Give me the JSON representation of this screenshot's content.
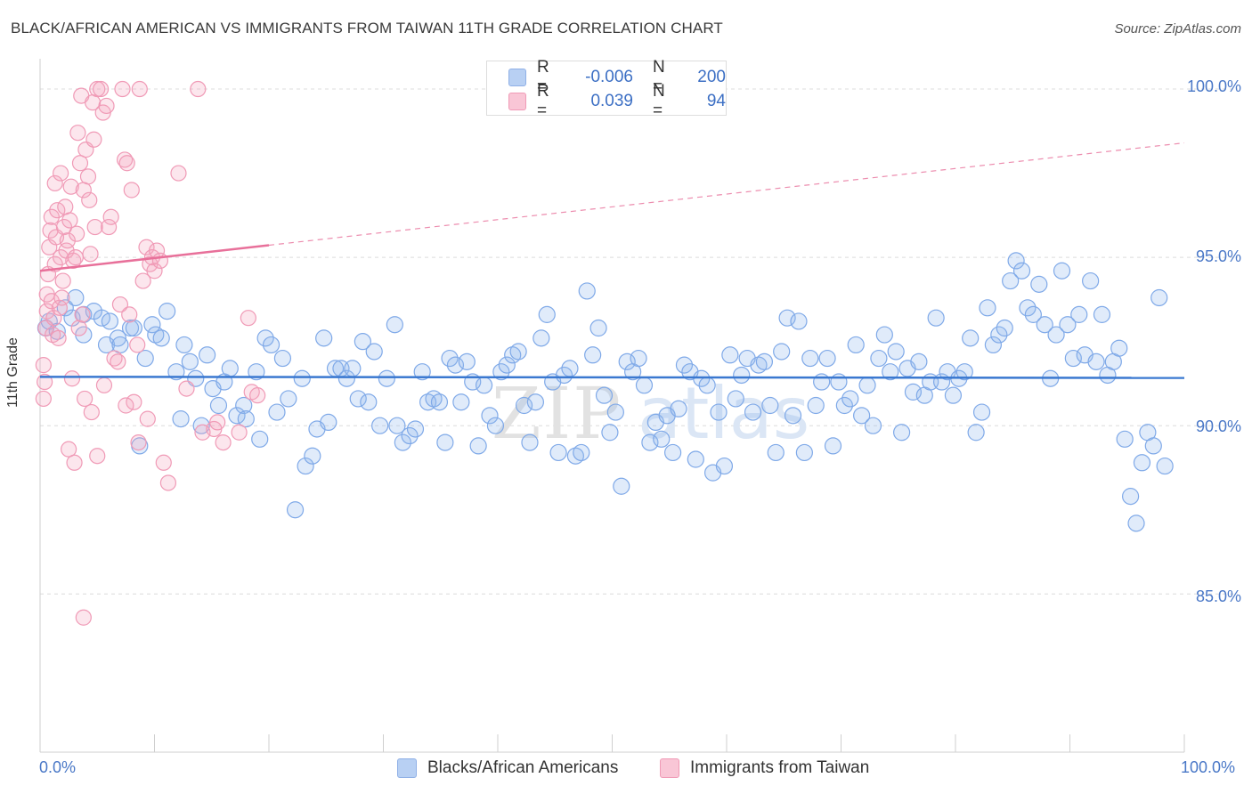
{
  "title": "BLACK/AFRICAN AMERICAN VS IMMIGRANTS FROM TAIWAN 11TH GRADE CORRELATION CHART",
  "source": "Source: ZipAtlas.com",
  "colors": {
    "blue": "#8fb6ee",
    "blue_line": "#3a78d0",
    "pink": "#f4a7c0",
    "pink_line": "#e8709a",
    "tick": "#4a78c7"
  },
  "legend_top": {
    "row1": {
      "r_label": "R =",
      "r_value": "-0.006",
      "n_label": "N =",
      "n_value": "200"
    },
    "row2": {
      "r_label": "R =",
      "r_value": "0.039",
      "n_label": "N =",
      "n_value": "94"
    }
  },
  "watermark": {
    "zip": "ZIP",
    "atlas": "atlas"
  },
  "chart_data": {
    "type": "scatter",
    "title": "BLACK/AFRICAN AMERICAN VS IMMIGRANTS FROM TAIWAN 11TH GRADE CORRELATION CHART",
    "xlabel": "",
    "ylabel": "11th Grade",
    "xlim": [
      0,
      100
    ],
    "ylim": [
      80.3,
      100.9
    ],
    "x_tick_labels": [
      "0.0%",
      "100.0%"
    ],
    "y_ticks": [
      85,
      90,
      95,
      100
    ],
    "y_tick_labels": [
      "85.0%",
      "90.0%",
      "95.0%",
      "100.0%"
    ],
    "grid": true,
    "legend_position": "bottom",
    "series": [
      {
        "name": "Blacks/African Americans",
        "trend": {
          "x": [
            0,
            100
          ],
          "y": [
            91.45,
            91.42
          ]
        },
        "points": [
          [
            0.5,
            92.9
          ],
          [
            0.8,
            93.1
          ],
          [
            1.5,
            92.8
          ],
          [
            2.2,
            93.5
          ],
          [
            2.8,
            93.2
          ],
          [
            3.1,
            93.8
          ],
          [
            3.8,
            93.3
          ],
          [
            3.8,
            92.7
          ],
          [
            4.7,
            93.4
          ],
          [
            5.4,
            93.2
          ],
          [
            5.8,
            92.4
          ],
          [
            6.1,
            93.1
          ],
          [
            6.8,
            92.6
          ],
          [
            7.0,
            92.4
          ],
          [
            7.9,
            92.9
          ],
          [
            8.2,
            92.9
          ],
          [
            8.7,
            89.4
          ],
          [
            9.2,
            92.0
          ],
          [
            9.8,
            93.0
          ],
          [
            10.1,
            92.7
          ],
          [
            10.6,
            92.6
          ],
          [
            11.1,
            93.4
          ],
          [
            11.9,
            91.6
          ],
          [
            12.3,
            90.2
          ],
          [
            12.6,
            92.4
          ],
          [
            13.1,
            91.9
          ],
          [
            13.6,
            91.4
          ],
          [
            14.1,
            90.0
          ],
          [
            14.6,
            92.1
          ],
          [
            15.1,
            91.1
          ],
          [
            15.6,
            90.6
          ],
          [
            16.1,
            91.3
          ],
          [
            16.6,
            91.7
          ],
          [
            17.2,
            90.3
          ],
          [
            17.8,
            90.6
          ],
          [
            18.0,
            90.2
          ],
          [
            18.9,
            91.6
          ],
          [
            19.2,
            89.6
          ],
          [
            19.7,
            92.6
          ],
          [
            20.2,
            92.4
          ],
          [
            20.7,
            90.4
          ],
          [
            21.2,
            92.0
          ],
          [
            21.7,
            90.8
          ],
          [
            22.3,
            87.5
          ],
          [
            22.9,
            91.4
          ],
          [
            23.2,
            88.8
          ],
          [
            23.8,
            89.1
          ],
          [
            24.2,
            89.9
          ],
          [
            24.8,
            92.6
          ],
          [
            25.2,
            90.1
          ],
          [
            25.8,
            91.7
          ],
          [
            26.3,
            91.7
          ],
          [
            26.8,
            91.4
          ],
          [
            27.3,
            91.7
          ],
          [
            27.8,
            90.8
          ],
          [
            28.2,
            92.5
          ],
          [
            28.7,
            90.7
          ],
          [
            29.2,
            92.2
          ],
          [
            29.7,
            90.0
          ],
          [
            30.3,
            91.4
          ],
          [
            31.0,
            93.0
          ],
          [
            31.2,
            90.0
          ],
          [
            31.7,
            89.5
          ],
          [
            32.3,
            89.7
          ],
          [
            32.8,
            89.9
          ],
          [
            33.4,
            91.6
          ],
          [
            33.9,
            90.7
          ],
          [
            34.4,
            90.8
          ],
          [
            34.9,
            90.7
          ],
          [
            35.4,
            89.5
          ],
          [
            35.8,
            92.0
          ],
          [
            36.3,
            91.8
          ],
          [
            36.8,
            90.7
          ],
          [
            37.3,
            91.9
          ],
          [
            37.8,
            91.3
          ],
          [
            38.3,
            89.4
          ],
          [
            38.8,
            91.2
          ],
          [
            39.3,
            90.3
          ],
          [
            39.8,
            90.0
          ],
          [
            40.3,
            91.6
          ],
          [
            40.8,
            91.8
          ],
          [
            41.3,
            92.1
          ],
          [
            41.8,
            92.2
          ],
          [
            42.3,
            90.6
          ],
          [
            42.8,
            89.5
          ],
          [
            43.3,
            90.7
          ],
          [
            43.8,
            92.6
          ],
          [
            44.3,
            93.3
          ],
          [
            44.8,
            91.3
          ],
          [
            45.3,
            89.2
          ],
          [
            45.8,
            91.5
          ],
          [
            46.3,
            91.7
          ],
          [
            46.8,
            89.1
          ],
          [
            47.3,
            89.2
          ],
          [
            47.8,
            94.0
          ],
          [
            48.3,
            92.1
          ],
          [
            48.8,
            92.9
          ],
          [
            49.3,
            90.9
          ],
          [
            49.8,
            89.8
          ],
          [
            50.3,
            90.4
          ],
          [
            50.8,
            88.2
          ],
          [
            51.3,
            91.9
          ],
          [
            51.8,
            91.6
          ],
          [
            52.3,
            92.0
          ],
          [
            52.8,
            91.2
          ],
          [
            53.3,
            89.5
          ],
          [
            53.8,
            90.1
          ],
          [
            54.3,
            89.6
          ],
          [
            54.8,
            90.3
          ],
          [
            55.3,
            89.2
          ],
          [
            55.8,
            90.5
          ],
          [
            56.3,
            91.8
          ],
          [
            56.8,
            91.6
          ],
          [
            57.3,
            89.0
          ],
          [
            57.8,
            91.4
          ],
          [
            58.3,
            91.2
          ],
          [
            58.8,
            88.6
          ],
          [
            59.3,
            90.4
          ],
          [
            59.8,
            88.8
          ],
          [
            60.3,
            92.1
          ],
          [
            60.8,
            90.8
          ],
          [
            61.3,
            91.5
          ],
          [
            61.8,
            92.0
          ],
          [
            62.3,
            90.4
          ],
          [
            62.8,
            91.8
          ],
          [
            63.3,
            91.9
          ],
          [
            63.8,
            90.6
          ],
          [
            64.3,
            89.2
          ],
          [
            64.8,
            92.2
          ],
          [
            65.3,
            93.2
          ],
          [
            65.8,
            90.3
          ],
          [
            66.3,
            93.1
          ],
          [
            66.8,
            89.2
          ],
          [
            67.3,
            92.0
          ],
          [
            67.8,
            90.6
          ],
          [
            68.3,
            91.3
          ],
          [
            68.8,
            92.0
          ],
          [
            69.3,
            89.4
          ],
          [
            69.8,
            91.3
          ],
          [
            70.3,
            90.6
          ],
          [
            70.8,
            90.8
          ],
          [
            71.3,
            92.4
          ],
          [
            71.8,
            90.3
          ],
          [
            72.3,
            91.2
          ],
          [
            72.8,
            90.0
          ],
          [
            73.3,
            92.0
          ],
          [
            73.8,
            92.7
          ],
          [
            74.3,
            91.6
          ],
          [
            74.8,
            92.2
          ],
          [
            75.3,
            89.8
          ],
          [
            75.8,
            91.7
          ],
          [
            76.3,
            91.0
          ],
          [
            76.8,
            91.9
          ],
          [
            77.3,
            90.9
          ],
          [
            77.8,
            91.3
          ],
          [
            78.3,
            93.2
          ],
          [
            78.8,
            91.3
          ],
          [
            79.3,
            91.6
          ],
          [
            79.8,
            90.9
          ],
          [
            80.3,
            91.4
          ],
          [
            80.8,
            91.6
          ],
          [
            81.3,
            92.6
          ],
          [
            81.8,
            89.8
          ],
          [
            82.3,
            90.4
          ],
          [
            82.8,
            93.5
          ],
          [
            83.3,
            92.4
          ],
          [
            83.8,
            92.7
          ],
          [
            84.3,
            92.9
          ],
          [
            84.8,
            94.3
          ],
          [
            85.3,
            94.9
          ],
          [
            85.8,
            94.6
          ],
          [
            86.3,
            93.5
          ],
          [
            86.8,
            93.3
          ],
          [
            87.3,
            94.2
          ],
          [
            87.8,
            93.0
          ],
          [
            88.3,
            91.4
          ],
          [
            88.8,
            92.7
          ],
          [
            89.3,
            94.6
          ],
          [
            89.8,
            93.0
          ],
          [
            90.3,
            92.0
          ],
          [
            90.8,
            93.3
          ],
          [
            91.3,
            92.1
          ],
          [
            91.8,
            94.3
          ],
          [
            92.3,
            91.9
          ],
          [
            92.8,
            93.3
          ],
          [
            93.3,
            91.5
          ],
          [
            93.8,
            91.9
          ],
          [
            94.3,
            92.3
          ],
          [
            94.8,
            89.6
          ],
          [
            95.3,
            87.9
          ],
          [
            95.8,
            87.1
          ],
          [
            96.3,
            88.9
          ],
          [
            96.8,
            89.8
          ],
          [
            97.3,
            89.4
          ],
          [
            97.8,
            93.8
          ],
          [
            98.3,
            88.8
          ]
        ]
      },
      {
        "name": "Immigrants from Taiwan",
        "trend": {
          "x": [
            0,
            100
          ],
          "y": [
            94.6,
            98.4
          ],
          "solid_until_x": 20
        },
        "points": [
          [
            0.3,
            91.8
          ],
          [
            0.3,
            90.8
          ],
          [
            0.4,
            91.3
          ],
          [
            0.5,
            92.9
          ],
          [
            0.6,
            93.4
          ],
          [
            0.6,
            93.9
          ],
          [
            0.7,
            94.5
          ],
          [
            0.8,
            95.3
          ],
          [
            0.9,
            95.8
          ],
          [
            1.0,
            96.2
          ],
          [
            1.0,
            93.7
          ],
          [
            1.1,
            92.7
          ],
          [
            1.2,
            93.2
          ],
          [
            1.3,
            94.8
          ],
          [
            1.3,
            97.2
          ],
          [
            1.4,
            95.6
          ],
          [
            1.5,
            96.4
          ],
          [
            1.6,
            92.6
          ],
          [
            1.7,
            93.5
          ],
          [
            1.8,
            95.0
          ],
          [
            1.8,
            97.5
          ],
          [
            1.9,
            93.8
          ],
          [
            2.0,
            94.3
          ],
          [
            2.1,
            95.9
          ],
          [
            2.2,
            96.5
          ],
          [
            2.3,
            95.2
          ],
          [
            2.4,
            95.5
          ],
          [
            2.5,
            89.3
          ],
          [
            2.6,
            96.1
          ],
          [
            2.7,
            97.1
          ],
          [
            2.8,
            91.4
          ],
          [
            2.9,
            94.9
          ],
          [
            3.0,
            88.9
          ],
          [
            3.1,
            95.0
          ],
          [
            3.2,
            95.7
          ],
          [
            3.3,
            98.7
          ],
          [
            3.4,
            92.9
          ],
          [
            3.5,
            97.8
          ],
          [
            3.6,
            99.8
          ],
          [
            3.7,
            93.3
          ],
          [
            3.8,
            97.0
          ],
          [
            3.8,
            84.3
          ],
          [
            4.0,
            98.2
          ],
          [
            4.2,
            97.4
          ],
          [
            4.3,
            96.7
          ],
          [
            4.4,
            95.1
          ],
          [
            4.5,
            90.4
          ],
          [
            4.6,
            99.6
          ],
          [
            4.7,
            98.5
          ],
          [
            4.8,
            95.9
          ],
          [
            5.0,
            89.1
          ],
          [
            5.0,
            100.0
          ],
          [
            5.3,
            100.0
          ],
          [
            5.5,
            99.3
          ],
          [
            5.8,
            99.5
          ],
          [
            6.0,
            95.9
          ],
          [
            6.2,
            96.2
          ],
          [
            6.5,
            92.0
          ],
          [
            6.8,
            91.9
          ],
          [
            7.0,
            93.6
          ],
          [
            7.2,
            100.0
          ],
          [
            7.4,
            97.9
          ],
          [
            7.6,
            97.8
          ],
          [
            7.8,
            93.3
          ],
          [
            8.0,
            97.0
          ],
          [
            8.2,
            90.7
          ],
          [
            8.5,
            92.4
          ],
          [
            8.7,
            100.0
          ],
          [
            9.0,
            94.3
          ],
          [
            9.3,
            95.3
          ],
          [
            9.6,
            94.8
          ],
          [
            9.8,
            95.0
          ],
          [
            10.0,
            94.6
          ],
          [
            10.2,
            95.2
          ],
          [
            10.5,
            94.9
          ],
          [
            10.8,
            88.9
          ],
          [
            11.2,
            88.3
          ],
          [
            12.1,
            97.5
          ],
          [
            13.8,
            100.0
          ],
          [
            14.2,
            89.8
          ],
          [
            15.2,
            89.9
          ],
          [
            15.5,
            90.1
          ],
          [
            16.0,
            89.5
          ],
          [
            17.4,
            89.8
          ],
          [
            18.2,
            93.2
          ],
          [
            18.5,
            91.0
          ],
          [
            19.0,
            90.9
          ],
          [
            7.5,
            90.6
          ],
          [
            8.6,
            89.5
          ],
          [
            9.4,
            90.2
          ],
          [
            3.9,
            90.8
          ],
          [
            5.6,
            91.2
          ],
          [
            12.8,
            91.1
          ]
        ]
      }
    ]
  }
}
